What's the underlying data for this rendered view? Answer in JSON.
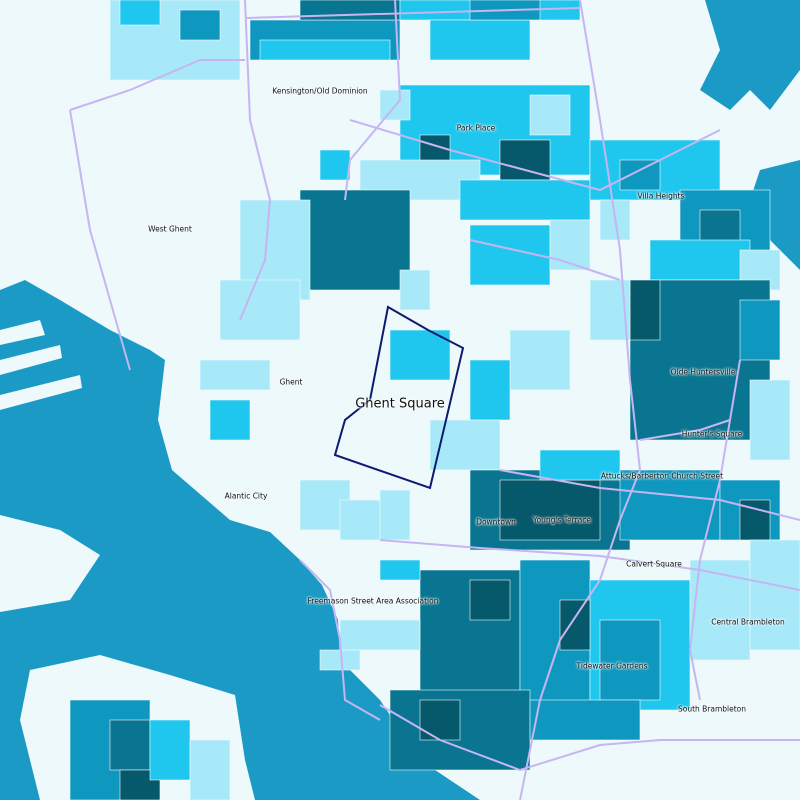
{
  "map": {
    "highlighted_neighborhood": "Ghent Square",
    "labels": [
      "Kensington/Old Dominion",
      "Park Place",
      "Villa Heights",
      "West Ghent",
      "Olde Huntersville",
      "Ghent",
      "Ghent Square",
      "Hunter's Square",
      "Attucks/Barberton Church Street",
      "Alantic City",
      "Downtown",
      "Young's Terrace",
      "Calvert Square",
      "Freemason Street Area Association",
      "Central Brambleton",
      "Tidewater Gardens",
      "South Brambleton"
    ],
    "colors": {
      "land": "#eef9fc",
      "water": "#1b9ac6",
      "level_1": "#a8e9f9",
      "level_2": "#1fc7ef",
      "level_3": "#0f98bf",
      "level_4": "#0a7590",
      "level_5": "#06586b",
      "roads": "#c6b5f2",
      "highlight_outline": "#0d1a6e"
    }
  }
}
